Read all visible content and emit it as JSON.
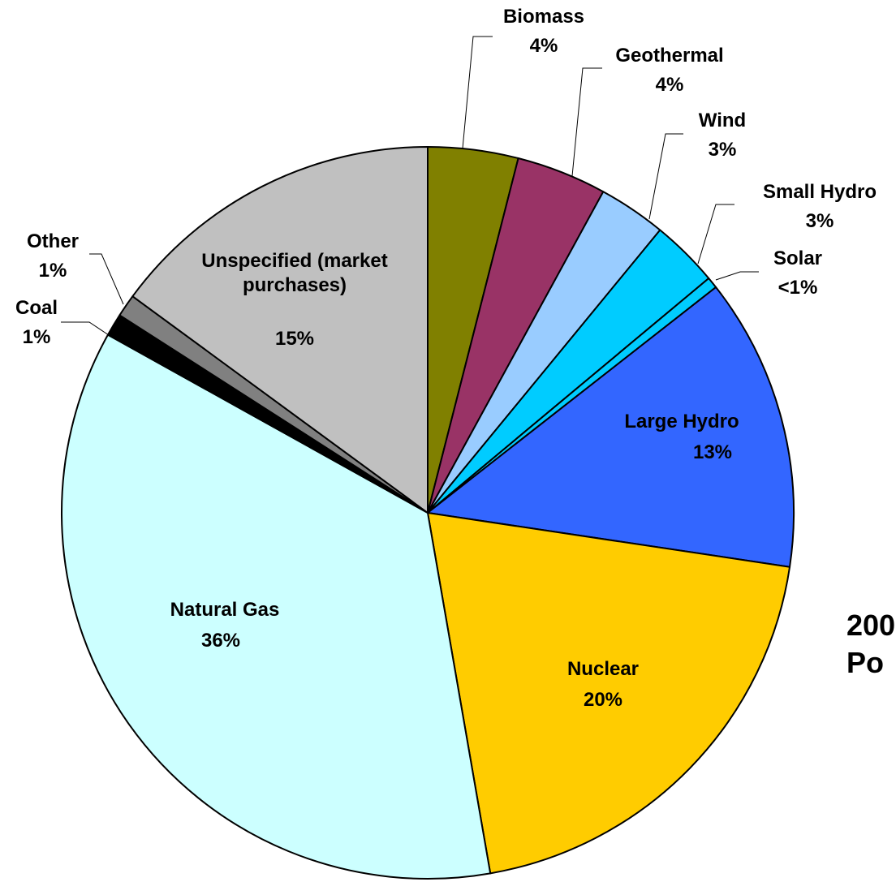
{
  "chart_data": {
    "type": "pie",
    "title_lines": [
      "200",
      "Po"
    ],
    "categories": [
      "Biomass",
      "Geothermal",
      "Wind",
      "Small Hydro",
      "Solar",
      "Large Hydro",
      "Nuclear",
      "Natural Gas",
      "Coal",
      "Other",
      "Unspecified (market purchases)"
    ],
    "values": [
      4,
      4,
      3,
      3,
      0.5,
      13,
      20,
      36,
      1,
      1,
      15
    ],
    "value_labels": [
      "4%",
      "4%",
      "3%",
      "3%",
      "<1%",
      "13%",
      "20%",
      "36%",
      "1%",
      "1%",
      "15%"
    ],
    "colors": [
      "#808000",
      "#993366",
      "#99ccff",
      "#00ccff",
      "#00ccff",
      "#3366ff",
      "#ffcc00",
      "#ccffff",
      "#000000",
      "#808080",
      "#c0c0c0"
    ]
  }
}
